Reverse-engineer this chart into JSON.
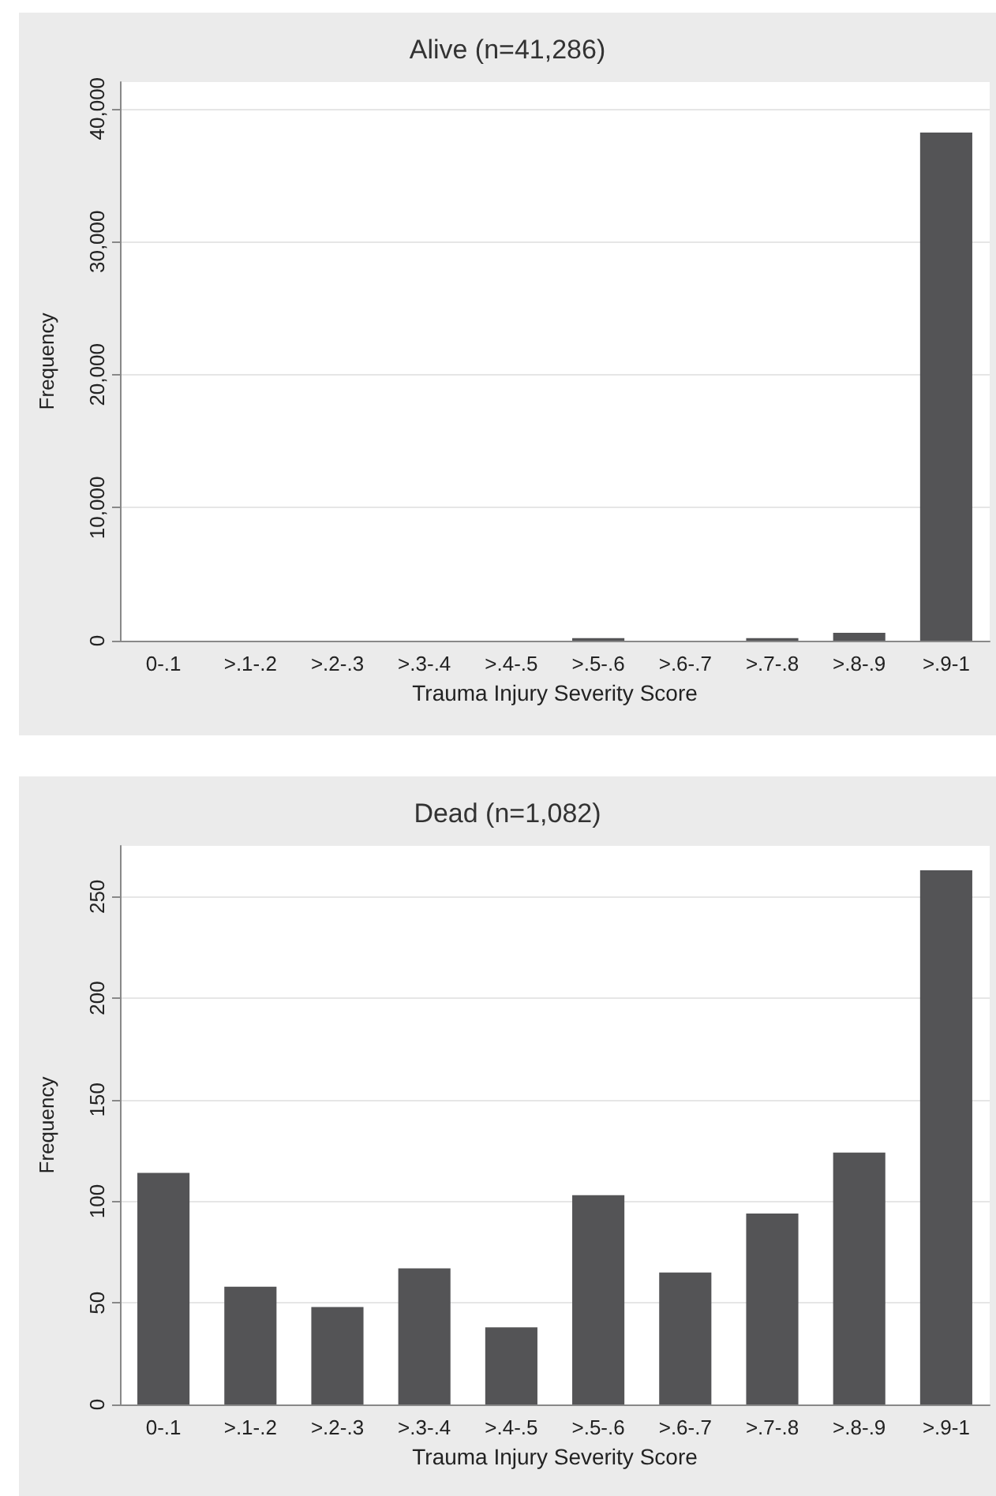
{
  "chart_data": [
    {
      "type": "bar",
      "title": "Alive (n=41,286)",
      "xlabel": "Trauma Injury Severity Score",
      "ylabel": "Frequency",
      "categories": [
        "0-.1",
        ">.1-.2",
        ">.2-.3",
        ">.3-.4",
        ">.4-.5",
        ">.5-.6",
        ">.6-.7",
        ">.7-.8",
        ">.8-.9",
        ">.9-1"
      ],
      "values": [
        0,
        0,
        0,
        0,
        0,
        200,
        0,
        200,
        600,
        38200
      ],
      "color": "#545456",
      "ylim": [
        0,
        42000
      ],
      "yticks": [
        {
          "value": 0,
          "label": "0"
        },
        {
          "value": 10000,
          "label": "10,000"
        },
        {
          "value": 20000,
          "label": "20,000"
        },
        {
          "value": 30000,
          "label": "30,000"
        },
        {
          "value": 40000,
          "label": "40,000"
        }
      ],
      "grid": "y"
    },
    {
      "type": "bar",
      "title": "Dead (n=1,082)",
      "xlabel": "Trauma Injury Severity Score",
      "ylabel": "Frequency",
      "categories": [
        "0-.1",
        ">.1-.2",
        ">.2-.3",
        ">.3-.4",
        ">.4-.5",
        ">.5-.6",
        ">.6-.7",
        ">.7-.8",
        ">.8-.9",
        ">.9-1"
      ],
      "values": [
        114,
        58,
        48,
        67,
        38,
        103,
        65,
        94,
        124,
        263
      ],
      "color": "#545456",
      "ylim": [
        0,
        275
      ],
      "yticks": [
        0,
        50,
        100,
        150,
        200,
        250
      ],
      "grid": "y"
    }
  ]
}
